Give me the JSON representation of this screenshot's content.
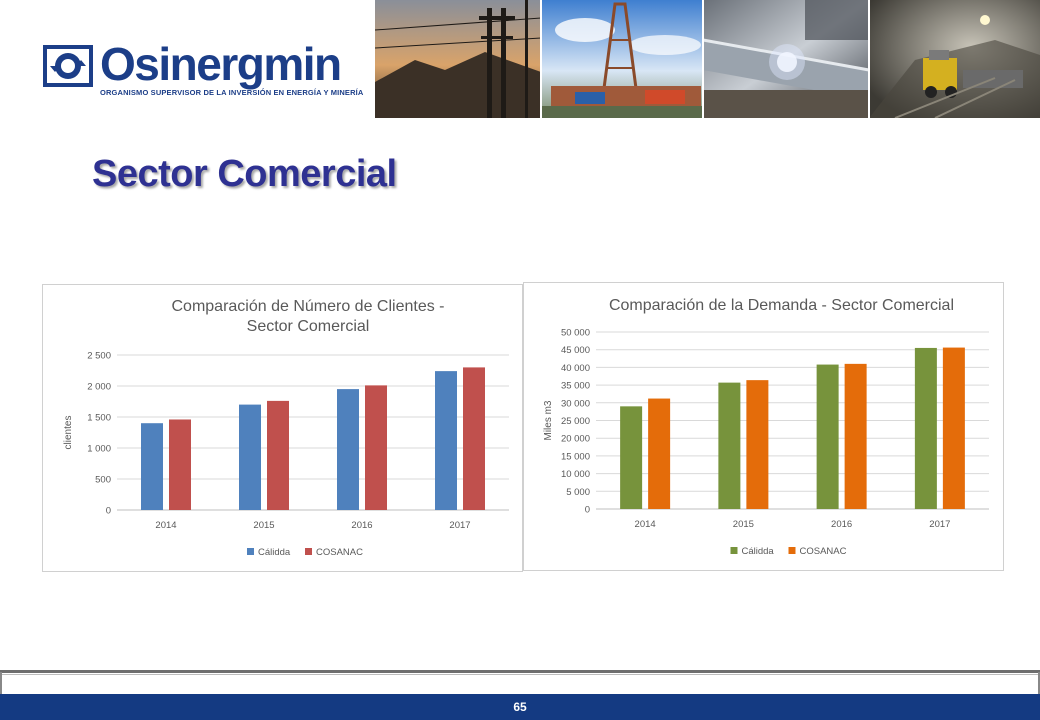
{
  "header": {
    "logo_name": "Osinergmin",
    "logo_tagline": "ORGANISMO SUPERVISOR DE LA INVERSIÓN EN ENERGÍA Y MINERÍA",
    "brand_color": "#1c3e88"
  },
  "slide": {
    "title": "Sector Comercial",
    "page_number": "65"
  },
  "chart_data": [
    {
      "type": "bar",
      "title": "Comparación de Número de Clientes - Sector Comercial",
      "xlabel": "",
      "ylabel": "clientes",
      "categories": [
        "2014",
        "2015",
        "2016",
        "2017"
      ],
      "series": [
        {
          "name": "Cálidda",
          "color": "#4f81bd",
          "values": [
            1400,
            1700,
            1950,
            2240
          ]
        },
        {
          "name": "COSANAC",
          "color": "#c0504d",
          "values": [
            1460,
            1760,
            2010,
            2300
          ]
        }
      ],
      "ylim": [
        0,
        2500
      ],
      "yticks": [
        0,
        500,
        1000,
        1500,
        2000,
        2500
      ],
      "ytick_labels": [
        "0",
        "500",
        "1 000",
        "1 500",
        "2 000",
        "2 500"
      ],
      "grid": true,
      "legend": "bottom"
    },
    {
      "type": "bar",
      "title": "Comparación de la Demanda - Sector Comercial",
      "xlabel": "",
      "ylabel": "Miles m3",
      "categories": [
        "2014",
        "2015",
        "2016",
        "2017"
      ],
      "series": [
        {
          "name": "Cálidda",
          "color": "#77933c",
          "values": [
            29000,
            35700,
            40800,
            45500
          ]
        },
        {
          "name": "COSANAC",
          "color": "#e46c0a",
          "values": [
            31200,
            36400,
            41000,
            45600
          ]
        }
      ],
      "ylim": [
        0,
        50000
      ],
      "yticks": [
        0,
        5000,
        10000,
        15000,
        20000,
        25000,
        30000,
        35000,
        40000,
        45000,
        50000
      ],
      "ytick_labels": [
        "0",
        "5 000",
        "10 000",
        "15 000",
        "20 000",
        "25 000",
        "30 000",
        "35 000",
        "40 000",
        "45 000",
        "50 000"
      ],
      "grid": true,
      "legend": "bottom"
    }
  ]
}
